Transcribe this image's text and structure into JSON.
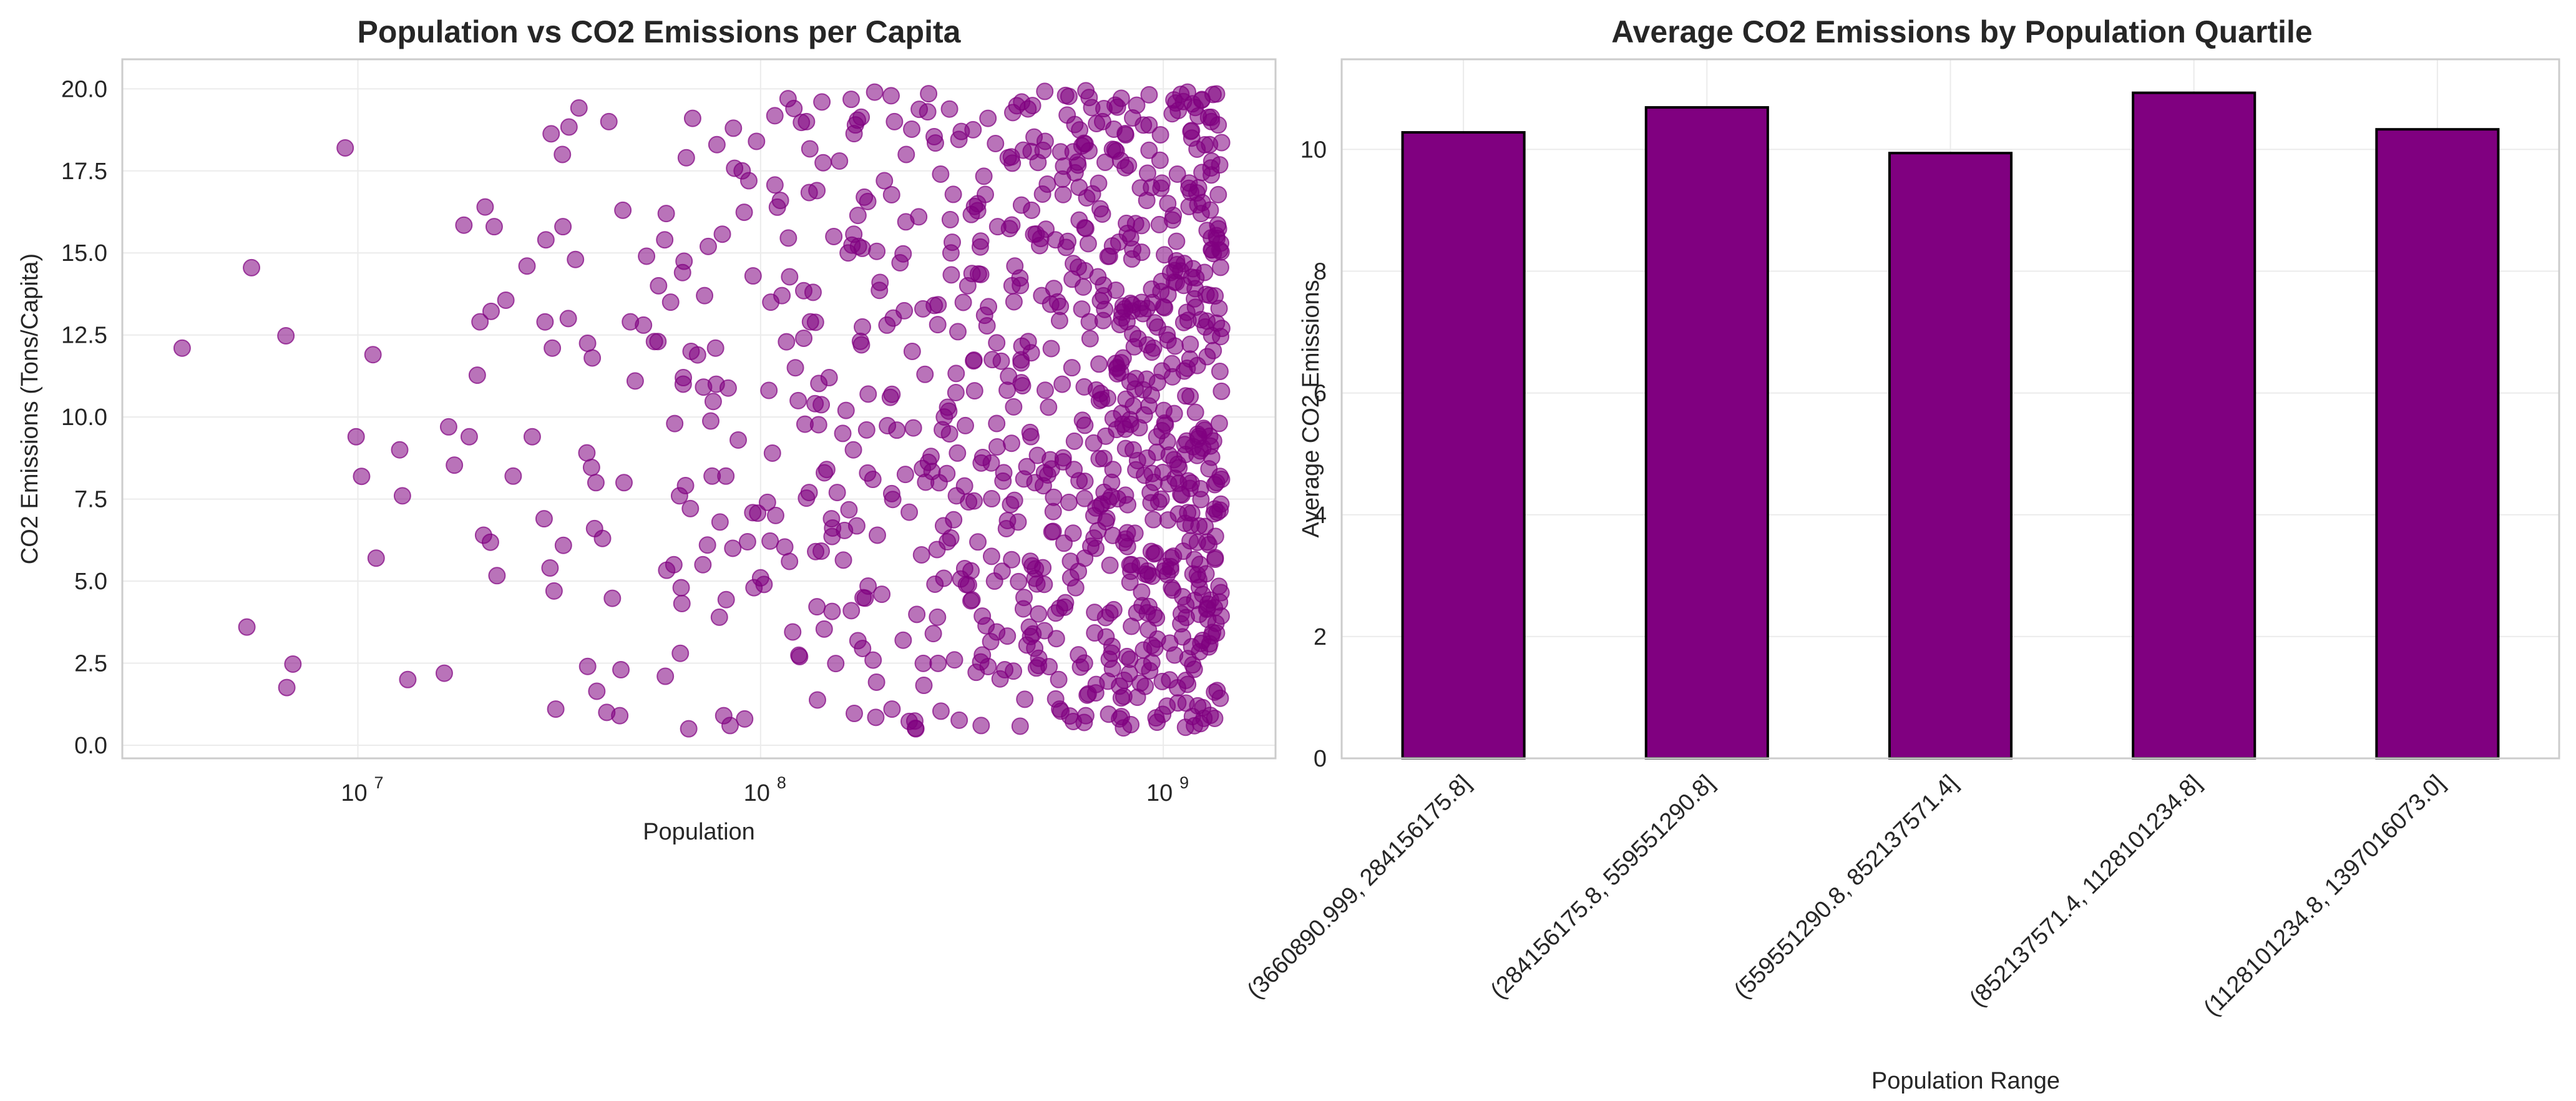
{
  "colors": {
    "point": "#800080",
    "bar": "#800080",
    "bar_edge": "#000000",
    "grid": "#ebebeb",
    "spine": "#cccccc",
    "text": "#262626"
  },
  "chart_data": [
    {
      "type": "scatter",
      "title": "Population vs CO2 Emissions per Capita",
      "xlabel": "Population",
      "ylabel": "CO2 Emissions (Tons/Capita)",
      "xscale": "log",
      "xlim": [
        2600000,
        1900000000
      ],
      "ylim": [
        -0.4,
        20.9
      ],
      "x_ticks": [
        10000000,
        100000000,
        1000000000
      ],
      "x_tick_labels": [
        {
          "base": "10",
          "exp": "7"
        },
        {
          "base": "10",
          "exp": "8"
        },
        {
          "base": "10",
          "exp": "9"
        }
      ],
      "y_ticks": [
        0.0,
        2.5,
        5.0,
        7.5,
        10.0,
        12.5,
        15.0,
        17.5,
        20.0
      ],
      "y_tick_labels": [
        "0.0",
        "2.5",
        "5.0",
        "7.5",
        "10.0",
        "12.5",
        "15.0",
        "17.5",
        "20.0"
      ],
      "grid": true,
      "legend": "none",
      "point_count": 1000,
      "x_range": [
        3660890.999,
        1397016073.0
      ],
      "y_range": [
        0.5,
        20.0
      ],
      "points": [
        [
          3660891,
          12.1
        ],
        [
          5300000,
          3.6
        ],
        [
          9300000,
          18.2
        ],
        [
          9900000,
          9.4
        ],
        [
          10900000,
          11.9
        ],
        [
          11100000,
          5.7
        ],
        [
          12700000,
          9.0
        ],
        [
          12900000,
          7.6
        ],
        [
          13300000,
          2.0
        ],
        [
          16800000,
          9.7
        ],
        [
          18900000,
          9.4
        ],
        [
          20100000,
          12.9
        ],
        [
          20700000,
          16.4
        ],
        [
          21800000,
          15.8
        ],
        [
          24300000,
          8.2
        ],
        [
          26300000,
          14.6
        ],
        [
          27100000,
          9.4
        ],
        [
          29000000,
          6.9
        ],
        [
          29300000,
          15.4
        ],
        [
          30000000,
          5.4
        ],
        [
          30400000,
          12.1
        ],
        [
          30700000,
          4.7
        ],
        [
          31000000,
          1.1
        ],
        [
          32200000,
          18.0
        ],
        [
          32300000,
          15.8
        ],
        [
          33300000,
          13.0
        ],
        [
          34700000,
          14.8
        ],
        [
          37200000,
          2.4
        ],
        [
          38200000,
          11.8
        ],
        [
          38700000,
          6.6
        ],
        [
          39000000,
          8.0
        ],
        [
          40500000,
          6.3
        ],
        [
          41500000,
          1.0
        ],
        [
          42000000,
          19.0
        ],
        [
          44700000,
          0.9
        ],
        [
          45000000,
          2.3
        ],
        [
          45500000,
          16.3
        ],
        [
          45800000,
          8.0
        ],
        [
          47500000,
          12.9
        ],
        [
          51200000,
          12.8
        ],
        [
          52100000,
          14.9
        ],
        [
          54500000,
          12.3
        ],
        [
          55600000,
          12.3
        ],
        [
          55800000,
          14.0
        ],
        [
          57800000,
          15.4
        ],
        [
          58000000,
          2.1
        ],
        [
          58300000,
          16.2
        ],
        [
          59800000,
          13.5
        ],
        [
          60900000,
          5.5
        ],
        [
          61200000,
          9.8
        ],
        [
          62900000,
          7.6
        ],
        [
          63200000,
          2.8
        ],
        [
          63500000,
          4.8
        ],
        [
          64000000,
          14.4
        ],
        [
          64300000,
          11.2
        ],
        [
          65400000,
          17.9
        ],
        [
          66300000,
          0.5
        ],
        [
          67200000,
          12.0
        ],
        [
          67800000,
          19.1
        ],
        [
          71900000,
          5.5
        ],
        [
          72600000,
          13.7
        ],
        [
          73800000,
          6.1
        ],
        [
          75800000,
          8.2
        ],
        [
          77300000,
          12.1
        ],
        [
          77600000,
          11.0
        ],
        [
          77900000,
          18.3
        ],
        [
          79000000,
          3.9
        ],
        [
          79300000,
          6.8
        ],
        [
          81000000,
          0.9
        ],
        [
          82000000,
          8.2
        ],
        [
          84000000,
          0.6
        ],
        [
          85300000,
          6.0
        ],
        [
          85600000,
          18.8
        ],
        [
          88000000,
          9.3
        ],
        [
          90000000,
          17.5
        ],
        [
          91300000,
          0.8
        ],
        [
          92800000,
          6.2
        ],
        [
          93500000,
          17.2
        ],
        [
          95800000,
          14.3
        ],
        [
          96300000,
          4.8
        ],
        [
          97700000,
          18.4
        ],
        [
          100000000,
          5.1
        ],
        [
          102000000,
          4.9
        ],
        [
          104000000,
          7.4
        ],
        [
          106000000,
          13.5
        ],
        [
          107000000,
          8.9
        ],
        [
          109000000,
          7.0
        ],
        [
          112000000,
          16.6
        ],
        [
          113000000,
          13.7
        ],
        [
          117000000,
          19.7
        ],
        [
          118000000,
          5.6
        ],
        [
          121000000,
          19.4
        ],
        [
          122000000,
          11.5
        ],
        [
          124000000,
          10.5
        ],
        [
          125000000,
          2.7
        ],
        [
          128000000,
          12.4
        ],
        [
          130000000,
          19.0
        ],
        [
          132000000,
          7.7
        ],
        [
          133000000,
          12.9
        ],
        [
          135000000,
          13.8
        ],
        [
          137000000,
          5.9
        ],
        [
          138000000,
          16.9
        ],
        [
          142000000,
          19.6
        ],
        [
          144000000,
          8.3
        ],
        [
          146000000,
          8.4
        ],
        [
          148000000,
          11.2
        ],
        [
          150000000,
          6.9
        ],
        [
          152000000,
          15.5
        ],
        [
          155000000,
          7.7
        ],
        [
          157000000,
          17.8
        ],
        [
          160000000,
          9.5
        ],
        [
          163000000,
          10.2
        ],
        [
          165000000,
          15.0
        ],
        [
          168000000,
          4.1
        ],
        [
          170000000,
          9.0
        ],
        [
          172000000,
          18.9
        ],
        [
          175000000,
          15.2
        ],
        [
          178000000,
          12.2
        ],
        [
          181000000,
          16.7
        ],
        [
          185000000,
          10.7
        ],
        [
          190000000,
          8.1
        ],
        [
          192000000,
          19.9
        ],
        [
          195000000,
          6.4
        ],
        [
          198000000,
          14.1
        ],
        [
          200000000,
          4.6
        ],
        [
          203000000,
          17.2
        ],
        [
          206000000,
          12.8
        ],
        [
          210000000,
          10.6
        ],
        [
          212000000,
          1.1
        ],
        [
          215000000,
          19.0
        ],
        [
          218000000,
          9.6
        ],
        [
          222000000,
          14.7
        ],
        [
          226000000,
          3.2
        ],
        [
          230000000,
          18.0
        ],
        [
          234000000,
          7.1
        ],
        [
          238000000,
          12.0
        ],
        [
          243000000,
          0.5
        ],
        [
          247000000,
          16.1
        ],
        [
          251000000,
          5.8
        ],
        [
          256000000,
          11.3
        ],
        [
          260000000,
          19.3
        ],
        [
          265000000,
          8.8
        ],
        [
          270000000,
          13.4
        ],
        [
          275000000,
          3.9
        ],
        [
          280000000,
          17.4
        ],
        [
          286000000,
          10.0
        ],
        [
          291000000,
          6.2
        ],
        [
          297000000,
          15.0
        ],
        [
          303000000,
          2.6
        ],
        [
          309000000,
          12.6
        ],
        [
          315000000,
          18.7
        ],
        [
          321000000,
          7.9
        ],
        [
          327000000,
          14.0
        ],
        [
          333000000,
          4.4
        ],
        [
          340000000,
          10.8
        ],
        [
          346000000,
          16.5
        ],
        [
          353000000,
          0.6
        ],
        [
          360000000,
          13.1
        ],
        [
          367000000,
          19.1
        ],
        [
          374000000,
          8.6
        ],
        [
          381000000,
          5.0
        ],
        [
          388000000,
          15.8
        ],
        [
          396000000,
          11.7
        ],
        [
          404000000,
          2.3
        ],
        [
          412000000,
          17.9
        ],
        [
          420000000,
          9.2
        ],
        [
          428000000,
          14.6
        ],
        [
          436000000,
          6.8
        ],
        [
          445000000,
          19.6
        ],
        [
          453000000,
          1.4
        ],
        [
          462000000,
          12.3
        ],
        [
          471000000,
          16.3
        ],
        [
          480000000,
          8.0
        ],
        [
          490000000,
          4.0
        ],
        [
          499000000,
          13.7
        ],
        [
          509000000,
          18.4
        ],
        [
          519000000,
          10.3
        ],
        [
          529000000,
          6.5
        ],
        [
          540000000,
          15.4
        ],
        [
          550000000,
          2.0
        ],
        [
          561000000,
          11.0
        ],
        [
          572000000,
          19.8
        ],
        [
          583000000,
          7.4
        ],
        [
          594000000,
          14.2
        ],
        [
          606000000,
          4.8
        ],
        [
          618000000,
          17.0
        ],
        [
          630000000,
          9.9
        ],
        [
          642000000,
          0.9
        ],
        [
          655000000,
          12.9
        ],
        [
          667000000,
          16.8
        ],
        [
          680000000,
          6.0
        ],
        [
          694000000,
          10.5
        ],
        [
          707000000,
          19.0
        ],
        [
          721000000,
          3.3
        ],
        [
          735000000,
          14.9
        ],
        [
          750000000,
          8.4
        ],
        [
          764000000,
          18.1
        ],
        [
          779000000,
          1.8
        ],
        [
          795000000,
          11.8
        ],
        [
          810000000,
          15.9
        ],
        [
          826000000,
          5.5
        ],
        [
          842000000,
          9.0
        ],
        [
          859000000,
          19.5
        ],
        [
          876000000,
          13.3
        ],
        [
          893000000,
          2.9
        ],
        [
          910000000,
          16.6
        ],
        [
          928000000,
          7.7
        ],
        [
          946000000,
          12.1
        ],
        [
          965000000,
          0.7
        ],
        [
          984000000,
          18.6
        ],
        [
          1003000000,
          10.2
        ],
        [
          1023000000,
          5.2
        ],
        [
          1043000000,
          14.4
        ],
        [
          1063000000,
          8.7
        ],
        [
          1084000000,
          17.4
        ],
        [
          1105000000,
          3.7
        ],
        [
          1127000000,
          11.4
        ],
        [
          1149000000,
          19.9
        ],
        [
          1172000000,
          6.7
        ],
        [
          1195000000,
          13.6
        ],
        [
          1218000000,
          1.2
        ],
        [
          1242000000,
          16.2
        ],
        [
          1266000000,
          9.6
        ],
        [
          1291000000,
          4.3
        ],
        [
          1317000000,
          15.1
        ],
        [
          1343000000,
          7.2
        ],
        [
          1369000000,
          18.9
        ],
        [
          1397016073,
          12.7
        ]
      ]
    },
    {
      "type": "bar",
      "title": "Average CO2 Emissions by Population Quartile",
      "xlabel": "Population Range",
      "ylabel": "Average CO2 Emissions",
      "categories": [
        "(3660890.999, 284156175.8]",
        "(284156175.8, 559551290.8]",
        "(559551290.8, 852137571.4]",
        "(852137571.4, 1128101234.8]",
        "(1128101234.8, 1397016073.0]"
      ],
      "values": [
        10.28,
        10.69,
        9.94,
        10.93,
        10.33
      ],
      "ylim": [
        0,
        11.48
      ],
      "y_ticks": [
        0,
        2,
        4,
        6,
        8,
        10
      ],
      "y_tick_labels": [
        "0",
        "2",
        "4",
        "6",
        "8",
        "10"
      ],
      "grid": true,
      "legend": "none"
    }
  ]
}
